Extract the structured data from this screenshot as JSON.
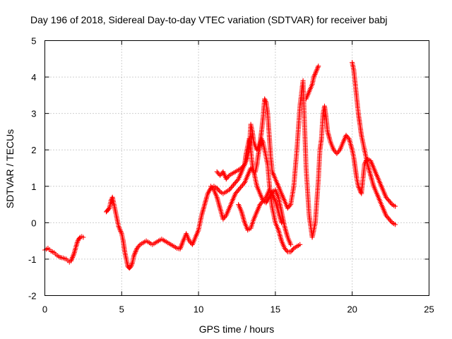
{
  "chart_data": {
    "type": "scatter",
    "title": "Day 196 of 2018, Sidereal Day-to-day VTEC variation (SDTVAR) for receiver babj",
    "xlabel": "GPS time / hours",
    "ylabel": "SDTVAR / TECUs",
    "xlim": [
      0,
      25
    ],
    "ylim": [
      -2,
      5
    ],
    "xticks": [
      0,
      5,
      10,
      15,
      20,
      25
    ],
    "yticks": [
      -2,
      -1,
      0,
      1,
      2,
      3,
      4,
      5
    ],
    "xtick_labels": [
      "0",
      "5",
      "10",
      "15",
      "20",
      "25"
    ],
    "ytick_labels": [
      "-2",
      "-1",
      "0",
      "1",
      "2",
      "3",
      "4",
      "5"
    ],
    "grid": true,
    "marker": "plus",
    "color": "#ff0000",
    "series": [
      {
        "name": "s1",
        "x": [
          0.0,
          0.2,
          0.4,
          0.6,
          0.8,
          1.0,
          1.2,
          1.4,
          1.6,
          1.7,
          1.8,
          1.9,
          2.0,
          2.1,
          2.2,
          2.3,
          2.4,
          2.5
        ],
        "y": [
          -0.75,
          -0.7,
          -0.78,
          -0.82,
          -0.9,
          -0.95,
          -0.97,
          -1.0,
          -1.08,
          -1.05,
          -0.95,
          -0.85,
          -0.7,
          -0.55,
          -0.45,
          -0.4,
          -0.38,
          -0.4
        ]
      },
      {
        "name": "s2",
        "x": [
          4.0,
          4.1,
          4.2,
          4.3,
          4.4,
          4.5,
          4.6,
          4.7,
          4.8,
          4.9,
          5.0,
          5.1,
          5.2,
          5.3,
          5.4,
          5.5,
          5.6,
          5.7,
          5.8,
          5.9,
          6.0,
          6.2,
          6.4,
          6.6,
          6.8,
          7.0,
          7.2,
          7.4,
          7.6,
          7.8,
          8.0,
          8.2,
          8.4,
          8.6,
          8.8,
          9.0,
          9.2,
          9.4,
          9.6,
          9.8,
          10.0,
          10.2,
          10.4,
          10.6,
          10.8,
          11.0,
          11.2,
          11.4,
          11.6,
          11.8,
          12.0,
          12.2,
          12.4,
          12.6,
          12.8,
          13.0,
          13.1,
          13.2,
          13.3,
          13.4,
          13.5,
          13.6,
          13.7,
          13.8,
          13.9,
          14.0,
          14.1,
          14.2,
          14.3,
          14.4,
          14.5,
          14.6,
          14.7,
          14.8,
          14.9,
          15.0,
          15.2,
          15.4,
          15.6,
          15.8,
          16.0,
          16.2,
          16.4,
          16.6
        ],
        "y": [
          0.3,
          0.35,
          0.4,
          0.6,
          0.7,
          0.5,
          0.3,
          0.1,
          -0.1,
          -0.2,
          -0.3,
          -0.5,
          -0.8,
          -1.0,
          -1.2,
          -1.25,
          -1.2,
          -1.1,
          -0.9,
          -0.8,
          -0.7,
          -0.6,
          -0.55,
          -0.5,
          -0.55,
          -0.6,
          -0.55,
          -0.5,
          -0.45,
          -0.5,
          -0.55,
          -0.6,
          -0.65,
          -0.7,
          -0.72,
          -0.5,
          -0.3,
          -0.5,
          -0.6,
          -0.4,
          -0.2,
          0.2,
          0.5,
          0.8,
          0.95,
          1.0,
          0.95,
          0.85,
          0.8,
          0.85,
          0.9,
          1.0,
          1.1,
          1.2,
          1.4,
          1.6,
          1.9,
          2.1,
          2.3,
          2.0,
          1.6,
          1.4,
          1.4,
          1.6,
          1.9,
          2.1,
          2.3,
          2.2,
          2.0,
          1.8,
          1.6,
          1.1,
          0.7,
          0.4,
          0.2,
          0.0,
          -0.2,
          -0.5,
          -0.7,
          -0.8,
          -0.8,
          -0.7,
          -0.65,
          -0.6
        ]
      },
      {
        "name": "s3",
        "x": [
          11.2,
          11.4,
          11.6,
          11.8,
          12.0,
          12.2,
          12.4,
          12.6,
          12.8,
          13.0,
          13.2,
          13.3,
          13.4,
          13.5,
          13.6,
          13.8,
          14.0,
          14.1,
          14.2,
          14.3,
          14.4,
          14.5,
          14.6,
          14.7,
          14.8,
          15.0,
          15.2,
          15.4,
          15.6,
          15.8,
          16.0,
          16.2,
          16.4,
          16.6,
          16.8,
          17.0,
          17.2,
          17.4,
          17.6,
          17.8,
          17.9,
          18.0,
          18.1,
          18.2,
          18.3,
          18.4,
          18.6,
          18.8,
          19.0,
          19.2,
          19.4,
          19.6,
          19.8,
          20.0,
          20.1,
          20.2,
          20.3,
          20.4,
          20.5,
          20.6,
          20.7,
          20.8,
          20.9,
          21.0,
          21.2,
          21.4,
          21.6,
          21.8,
          22.0,
          22.2,
          22.4,
          22.6,
          22.8
        ],
        "y": [
          1.4,
          1.3,
          1.4,
          1.2,
          1.3,
          1.35,
          1.4,
          1.45,
          1.5,
          1.6,
          1.8,
          2.0,
          2.7,
          2.5,
          2.2,
          2.0,
          2.2,
          2.5,
          2.9,
          3.4,
          3.3,
          3.0,
          2.4,
          1.8,
          1.4,
          1.2,
          1.0,
          0.8,
          0.6,
          0.4,
          0.5,
          1.0,
          2.0,
          3.2,
          3.9,
          1.5,
          0.2,
          -0.4,
          0.0,
          1.2,
          2.0,
          2.3,
          3.0,
          3.2,
          2.9,
          2.5,
          2.2,
          2.0,
          1.9,
          2.0,
          2.2,
          2.4,
          2.3,
          2.0,
          1.8,
          1.5,
          1.2,
          1.0,
          0.9,
          0.8,
          1.2,
          1.6,
          1.7,
          1.75,
          1.7,
          1.5,
          1.3,
          1.1,
          0.9,
          0.7,
          0.6,
          0.5,
          0.45
        ]
      },
      {
        "name": "s4",
        "x": [
          10.8,
          11.0,
          11.2,
          11.4,
          11.6,
          11.8,
          12.0,
          12.2,
          12.4,
          12.6,
          12.8,
          13.0,
          13.2,
          13.4,
          13.6,
          13.8,
          14.0,
          14.2,
          14.4,
          14.6,
          14.8,
          15.0,
          15.2,
          15.4,
          15.6,
          15.8,
          16.0
        ],
        "y": [
          1.0,
          0.9,
          0.7,
          0.4,
          0.1,
          0.2,
          0.4,
          0.6,
          0.8,
          0.9,
          1.0,
          1.1,
          1.3,
          1.5,
          1.4,
          1.0,
          0.8,
          0.6,
          0.55,
          0.7,
          0.85,
          0.9,
          0.7,
          0.3,
          -0.1,
          -0.4,
          -0.6
        ]
      },
      {
        "name": "s5",
        "x": [
          12.6,
          12.8,
          13.0,
          13.2,
          13.4,
          13.6,
          13.8,
          14.0,
          14.2,
          14.4,
          14.6,
          14.8,
          15.0,
          15.2,
          15.4
        ],
        "y": [
          0.5,
          0.3,
          0.0,
          -0.2,
          -0.15,
          0.1,
          0.3,
          0.5,
          0.6,
          0.7,
          0.9,
          0.8,
          0.6,
          0.3,
          0.0
        ]
      },
      {
        "name": "s6",
        "x": [
          17.0,
          17.2,
          17.4,
          17.5,
          17.6,
          17.7,
          17.8
        ],
        "y": [
          3.4,
          3.6,
          3.8,
          4.0,
          4.1,
          4.2,
          4.3
        ]
      },
      {
        "name": "s7",
        "x": [
          20.0,
          20.1,
          20.2,
          20.3,
          20.4,
          20.5,
          20.6,
          20.7,
          20.8,
          20.9,
          21.0,
          21.2,
          21.4,
          21.6,
          21.8,
          22.0,
          22.2,
          22.4,
          22.6,
          22.8
        ],
        "y": [
          4.4,
          4.2,
          3.8,
          3.4,
          3.0,
          2.7,
          2.4,
          2.2,
          2.0,
          1.8,
          1.6,
          1.3,
          1.0,
          0.8,
          0.6,
          0.4,
          0.2,
          0.1,
          0.0,
          -0.05
        ]
      }
    ]
  }
}
